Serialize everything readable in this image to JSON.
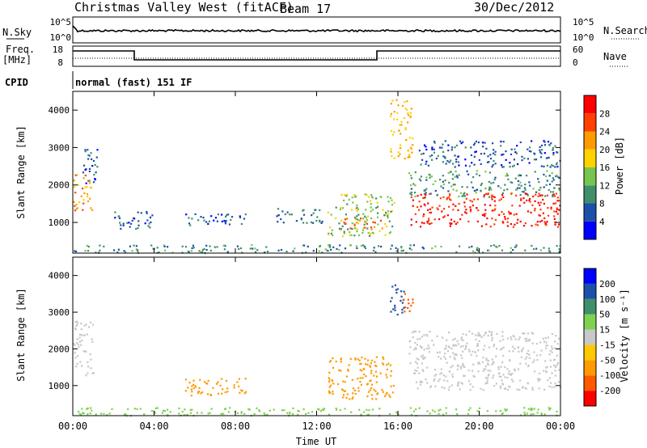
{
  "header": {
    "title": "Christmas Valley West (fitACF)",
    "beam": "Beam 17",
    "date": "30/Dec/2012"
  },
  "nsky_panel": {
    "left_label": "N.Sky",
    "right_label": "N.Search",
    "left_ticks": [
      "10^5",
      "10^0"
    ],
    "right_ticks": [
      "10^5",
      "10^0"
    ]
  },
  "freq_panel": {
    "left_label_1": "Freq.",
    "left_label_2": "[MHz]",
    "right_label": "Nave",
    "left_ticks": [
      18,
      8
    ],
    "right_ticks": [
      60,
      0
    ]
  },
  "cpid": {
    "label": "CPID",
    "mode": "normal (fast) 151 IF"
  },
  "colors": {
    "power_scale": [
      "#0000ff",
      "#1d50a8",
      "#3f8f6a",
      "#77c54e",
      "#ffd200",
      "#ff9a00",
      "#ff4000",
      "#ff0000"
    ],
    "velocity_scale": [
      "#ff0000",
      "#ff5a00",
      "#ff9a00",
      "#ffc800",
      "#c8c8c8",
      "#7fd14f",
      "#3f8f6a",
      "#1d50a8",
      "#0000ff"
    ]
  },
  "chart_data": [
    {
      "type": "heatmap",
      "name": "power",
      "ylabel": "Slant Range [km]",
      "ylim": [
        180,
        4500
      ],
      "yticks": [
        1000,
        2000,
        3000,
        4000
      ],
      "xlim_hours": [
        0,
        24
      ],
      "colorbar": {
        "label": "Power [dB]",
        "min": 0,
        "max": 32,
        "tick_values": [
          4,
          8,
          12,
          16,
          20,
          24,
          28
        ]
      },
      "regions": [
        {
          "t0": 0.0,
          "t1": 1.0,
          "r0": 1300,
          "r1": 2300,
          "value": 22
        },
        {
          "t0": 0.4,
          "t1": 1.2,
          "r0": 2000,
          "r1": 3000,
          "value": 6
        },
        {
          "t0": 2.0,
          "t1": 4.0,
          "r0": 850,
          "r1": 1350,
          "value": 6
        },
        {
          "t0": 5.5,
          "t1": 8.5,
          "r0": 900,
          "r1": 1250,
          "value": 6
        },
        {
          "t0": 10.0,
          "t1": 12.5,
          "r0": 1000,
          "r1": 1400,
          "value": 8
        },
        {
          "t0": 12.5,
          "t1": 15.8,
          "r0": 650,
          "r1": 1800,
          "value": 14
        },
        {
          "t0": 13.3,
          "t1": 15.3,
          "r0": 800,
          "r1": 1150,
          "value": 24
        },
        {
          "t0": 15.6,
          "t1": 16.7,
          "r0": 2700,
          "r1": 4300,
          "value": 20
        },
        {
          "t0": 16.5,
          "t1": 24.0,
          "r0": 1700,
          "r1": 2400,
          "value": 10
        },
        {
          "t0": 16.6,
          "t1": 24.0,
          "r0": 900,
          "r1": 1800,
          "value": 28
        },
        {
          "t0": 17.0,
          "t1": 24.0,
          "r0": 2500,
          "r1": 3200,
          "value": 6
        },
        {
          "t0": 0.0,
          "t1": 24.0,
          "r0": 200,
          "r1": 420,
          "value": 10
        }
      ]
    },
    {
      "type": "heatmap",
      "name": "velocity",
      "ylabel": "Slant Range [km]",
      "ylim": [
        180,
        4500
      ],
      "yticks": [
        1000,
        2000,
        3000,
        4000
      ],
      "xlim_hours": [
        0,
        24
      ],
      "xticks": [
        "00:00",
        "04:00",
        "08:00",
        "12:00",
        "16:00",
        "20:00",
        "00:00"
      ],
      "xlabel": "Time UT",
      "colorbar": {
        "label": "Velocity [m s⁻¹]",
        "tick_labels": [
          "200",
          "100",
          "50",
          "15",
          "-15",
          "-50",
          "-100",
          "-200"
        ]
      },
      "regions": [
        {
          "t0": 0.0,
          "t1": 1.0,
          "r0": 1300,
          "r1": 2800,
          "value": 0
        },
        {
          "t0": 5.5,
          "t1": 8.5,
          "r0": 750,
          "r1": 1250,
          "value": -60
        },
        {
          "t0": 12.5,
          "t1": 15.8,
          "r0": 650,
          "r1": 1800,
          "value": -80
        },
        {
          "t0": 15.6,
          "t1": 16.3,
          "r0": 2900,
          "r1": 3800,
          "value": 180
        },
        {
          "t0": 16.2,
          "t1": 16.8,
          "r0": 3000,
          "r1": 3600,
          "value": -180
        },
        {
          "t0": 16.5,
          "t1": 24.0,
          "r0": 900,
          "r1": 2500,
          "value": 0
        },
        {
          "t0": 0.0,
          "t1": 24.0,
          "r0": 200,
          "r1": 420,
          "value": 30
        }
      ]
    }
  ]
}
